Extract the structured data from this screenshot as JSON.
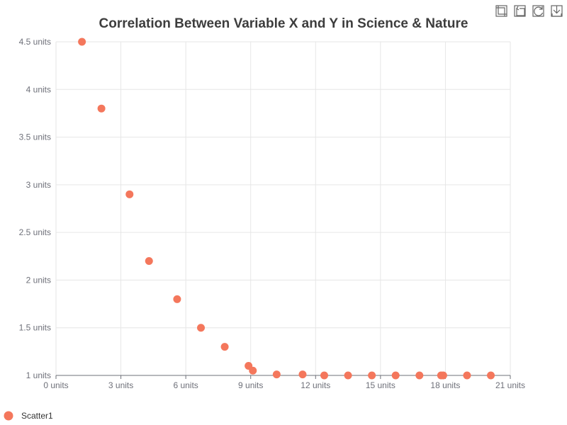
{
  "toolbox": {
    "items": [
      {
        "name": "zoom-icon"
      },
      {
        "name": "zoom-reset-icon"
      },
      {
        "name": "restore-icon"
      },
      {
        "name": "download-icon"
      }
    ]
  },
  "chart_data": {
    "type": "scatter",
    "title": "Correlation Between Variable X and Y in Science & Nature",
    "xlabel": "",
    "ylabel": "",
    "xlim": [
      0,
      21
    ],
    "ylim": [
      1,
      4.5
    ],
    "x_ticks": [
      0,
      3,
      6,
      9,
      12,
      15,
      18,
      21
    ],
    "y_ticks": [
      1,
      1.5,
      2,
      2.5,
      3,
      3.5,
      4,
      4.5
    ],
    "tick_suffix": " units",
    "grid": true,
    "legend_position": "bottom-left",
    "series": [
      {
        "name": "Scatter1",
        "color": "#f4775c",
        "x": [
          1.2,
          2.1,
          3.4,
          4.3,
          5.6,
          6.7,
          7.8,
          8.9,
          9.1,
          10.2,
          11.4,
          12.4,
          13.5,
          14.6,
          15.7,
          16.8,
          17.8,
          17.9,
          19.0,
          20.1
        ],
        "y": [
          4.5,
          3.8,
          2.9,
          2.2,
          1.8,
          1.5,
          1.3,
          1.1,
          1.05,
          1.01,
          1.01,
          1.0,
          1.0,
          1.0,
          1.0,
          1.0,
          1.0,
          1.0,
          1.0,
          1.0
        ]
      }
    ]
  }
}
